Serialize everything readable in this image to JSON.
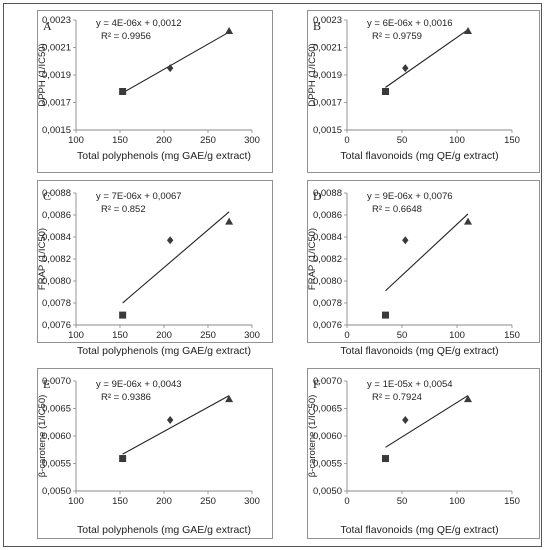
{
  "chart_data": [
    {
      "type": "scatter",
      "panel": "A",
      "xlabel": "Total polyphenols (mg GAE/g extract)",
      "ylabel": "DPPH (1/IC50)",
      "xlim": [
        100,
        300
      ],
      "xticks": [
        100,
        150,
        200,
        250,
        300
      ],
      "ylim": [
        0.0015,
        0.0023
      ],
      "yticks": [
        "0,0015",
        "0,0017",
        "0,0019",
        "0,0021",
        "0,0023"
      ],
      "points": [
        {
          "x": 153,
          "y": 0.00178,
          "marker": "square"
        },
        {
          "x": 207,
          "y": 0.00195,
          "marker": "diamond"
        },
        {
          "x": 274,
          "y": 0.00222,
          "marker": "triangle"
        }
      ],
      "trendline": {
        "x": [
          153,
          274
        ]
      },
      "equation": "y = 4E-06x + 0,0012",
      "r2": "R² = 0.9956"
    },
    {
      "type": "scatter",
      "panel": "B",
      "xlabel": "Total flavonoids (mg QE/g extract)",
      "ylabel": "DPPH (1/IC50)",
      "xlim": [
        0,
        150
      ],
      "xticks": [
        0,
        50,
        100,
        150
      ],
      "ylim": [
        0.0015,
        0.0023
      ],
      "yticks": [
        "0,0015",
        "0,0017",
        "0,0019",
        "0,0021",
        "0,0023"
      ],
      "points": [
        {
          "x": 35,
          "y": 0.00178,
          "marker": "square"
        },
        {
          "x": 53,
          "y": 0.00195,
          "marker": "diamond"
        },
        {
          "x": 110,
          "y": 0.00222,
          "marker": "triangle"
        }
      ],
      "trendline": {
        "x": [
          35,
          110
        ]
      },
      "equation": "y = 6E-06x + 0,0016",
      "r2": "R² = 0.9759"
    },
    {
      "type": "scatter",
      "panel": "C",
      "xlabel": "Total polyphenols (mg GAE/g extract)",
      "ylabel": "FRAP (1/IC50)",
      "xlim": [
        100,
        300
      ],
      "xticks": [
        100,
        150,
        200,
        250,
        300
      ],
      "ylim": [
        0.0076,
        0.0088
      ],
      "yticks": [
        "0,0076",
        "0,0078",
        "0,0080",
        "0,0082",
        "0,0084",
        "0,0086",
        "0,0088"
      ],
      "points": [
        {
          "x": 153,
          "y": 0.00769,
          "marker": "square"
        },
        {
          "x": 207,
          "y": 0.00837,
          "marker": "diamond"
        },
        {
          "x": 274,
          "y": 0.00854,
          "marker": "triangle"
        }
      ],
      "trendline": {
        "x": [
          153,
          274
        ]
      },
      "equation": "y = 7E-06x + 0,0067",
      "r2": "R² = 0.852"
    },
    {
      "type": "scatter",
      "panel": "D",
      "xlabel": "Total flavonoids (mg QE/g extract)",
      "ylabel": "FRAP (1/IC50)",
      "xlim": [
        0,
        150
      ],
      "xticks": [
        0,
        50,
        100,
        150
      ],
      "ylim": [
        0.0076,
        0.0088
      ],
      "yticks": [
        "0,0076",
        "0,0078",
        "0,0080",
        "0,0082",
        "0,0084",
        "0,0086",
        "0,0088"
      ],
      "points": [
        {
          "x": 35,
          "y": 0.00769,
          "marker": "square"
        },
        {
          "x": 53,
          "y": 0.00837,
          "marker": "diamond"
        },
        {
          "x": 110,
          "y": 0.00854,
          "marker": "triangle"
        }
      ],
      "trendline": {
        "x": [
          35,
          110
        ]
      },
      "equation": "y = 9E-06x + 0,0076",
      "r2": "R² = 0.6648"
    },
    {
      "type": "scatter",
      "panel": "E",
      "xlabel": "Total polyphenols (mg GAE/g extract)",
      "ylabel": "β-carotene (1/IC50)",
      "xlim": [
        100,
        300
      ],
      "xticks": [
        100,
        150,
        200,
        250,
        300
      ],
      "ylim": [
        0.005,
        0.007
      ],
      "yticks": [
        "0,0050",
        "0,0055",
        "0,0060",
        "0,0065",
        "0,0070"
      ],
      "points": [
        {
          "x": 153,
          "y": 0.00559,
          "marker": "square"
        },
        {
          "x": 207,
          "y": 0.00629,
          "marker": "diamond"
        },
        {
          "x": 274,
          "y": 0.00667,
          "marker": "triangle"
        }
      ],
      "trendline": {
        "x": [
          153,
          274
        ]
      },
      "equation": "y = 9E-06x + 0,0043",
      "r2": "R² = 0.9386"
    },
    {
      "type": "scatter",
      "panel": "F",
      "xlabel": "Total flavonoids (mg QE/g extract)",
      "ylabel": "β-carotene (1/IC50)",
      "xlim": [
        0,
        150
      ],
      "xticks": [
        0,
        50,
        100,
        150
      ],
      "ylim": [
        0.005,
        0.007
      ],
      "yticks": [
        "0,0050",
        "0,0055",
        "0,0060",
        "0,0065",
        "0,0070"
      ],
      "points": [
        {
          "x": 35,
          "y": 0.00559,
          "marker": "square"
        },
        {
          "x": 53,
          "y": 0.00629,
          "marker": "diamond"
        },
        {
          "x": 110,
          "y": 0.00667,
          "marker": "triangle"
        }
      ],
      "trendline": {
        "x": [
          35,
          110
        ]
      },
      "equation": "y = 1E-05x + 0,0054",
      "r2": "R² = 0.7924"
    }
  ],
  "colors": {
    "ink": "#222222",
    "marker": "#3a3a3a",
    "frame": "#444444",
    "axis": "#888888"
  }
}
